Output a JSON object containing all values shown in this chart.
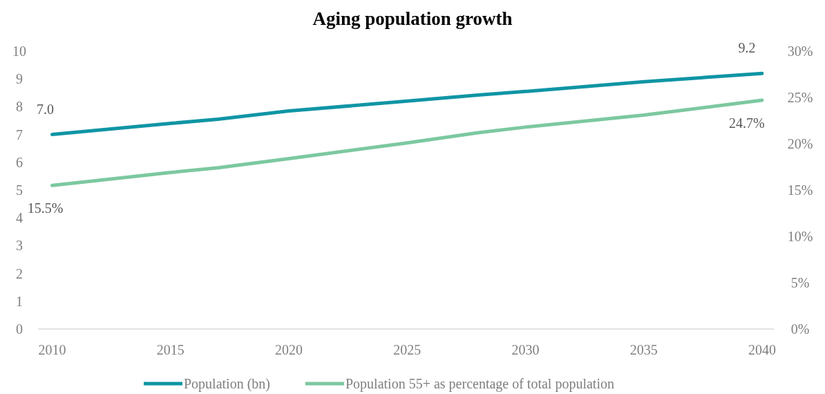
{
  "chart_data": {
    "type": "line",
    "title": "Aging population growth",
    "x": [
      2010,
      2015,
      2017,
      2020,
      2025,
      2028,
      2030,
      2035,
      2040
    ],
    "series": [
      {
        "name": "Population (bn)",
        "color": "#0f95a5",
        "values": [
          7.0,
          7.4,
          7.55,
          7.85,
          8.2,
          8.42,
          8.55,
          8.9,
          9.2
        ],
        "value_labels": [
          "7.0",
          null,
          null,
          null,
          null,
          null,
          null,
          null,
          "9.2"
        ]
      },
      {
        "name": "Population 55+ as percentage of total population",
        "color": "#7cc8a0",
        "axis": "y2",
        "values": [
          15.5,
          16.9,
          17.4,
          18.4,
          20.1,
          21.2,
          21.8,
          23.1,
          24.7
        ],
        "value_labels": [
          "15.5%",
          null,
          null,
          null,
          null,
          null,
          null,
          null,
          "24.7%"
        ]
      }
    ],
    "xlim": [
      2009.4,
      2040.5
    ],
    "xticks": [
      2010,
      2015,
      2020,
      2025,
      2030,
      2035,
      2040
    ],
    "ylim": [
      0,
      10
    ],
    "yticks": [
      0,
      1,
      2,
      3,
      4,
      5,
      6,
      7,
      8,
      9,
      10
    ],
    "y2lim": [
      0,
      30
    ],
    "y2ticks": [
      {
        "value": 0,
        "label": "0%"
      },
      {
        "value": 5,
        "label": "5%"
      },
      {
        "value": 10,
        "label": "10%"
      },
      {
        "value": 15,
        "label": "15%"
      },
      {
        "value": 20,
        "label": "20%"
      },
      {
        "value": 25,
        "label": "25%"
      },
      {
        "value": 30,
        "label": "30%"
      }
    ],
    "grid": false,
    "legend": "bottom",
    "line_style": "solid",
    "marker": "none"
  }
}
